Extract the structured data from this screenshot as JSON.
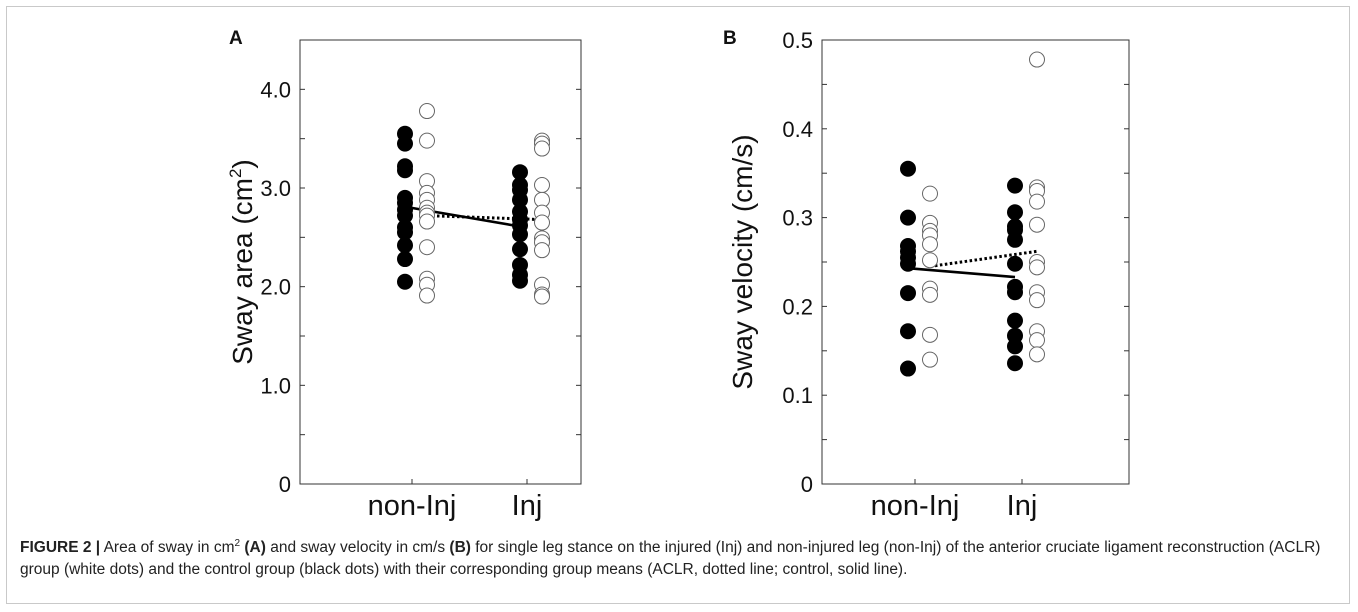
{
  "caption": {
    "label": "FIGURE 2 |",
    "t1": " Area of sway in cm",
    "sup": "2",
    "b1": " (A)",
    "t2": " and sway velocity in cm/s ",
    "b2": "(B)",
    "t3": " for single leg stance on the injured (Inj) and non-injured leg (non-Inj) of the anterior cruciate ligament reconstruction (ACLR) group (white dots) and the control group (black dots) with their corresponding group means (ACLR, dotted line; control, solid line)."
  },
  "chart_data": [
    {
      "type": "scatter",
      "panel": "A",
      "ylabel": "Sway area (cm²)",
      "ylabel_main": "Sway area (cm",
      "ylabel_sup": "2",
      "ylabel_end": ")",
      "categories": [
        "non-Inj",
        "Inj"
      ],
      "ylim": [
        0,
        4.5
      ],
      "yticks": [
        0,
        1.0,
        2.0,
        3.0,
        4.0
      ],
      "ytick_labels": [
        "0",
        "1.0",
        "2.0",
        "3.0",
        "4.0"
      ],
      "series": [
        {
          "group": "control",
          "marker": "black dots",
          "values": {
            "non-Inj": [
              3.55,
              3.45,
              3.22,
              3.18,
              2.9,
              2.85,
              2.78,
              2.72,
              2.6,
              2.55,
              2.42,
              2.28,
              2.05
            ],
            "Inj": [
              3.16,
              3.03,
              2.98,
              2.88,
              2.76,
              2.68,
              2.62,
              2.53,
              2.38,
              2.22,
              2.12,
              2.06
            ]
          },
          "mean": {
            "non-Inj": 2.81,
            "Inj": 2.61
          }
        },
        {
          "group": "ACLR",
          "marker": "white dots",
          "values": {
            "non-Inj": [
              3.78,
              3.48,
              3.07,
              2.95,
              2.88,
              2.8,
              2.75,
              2.72,
              2.66,
              2.4,
              2.08,
              2.02,
              1.91
            ],
            "Inj": [
              3.48,
              3.45,
              3.4,
              3.03,
              2.88,
              2.75,
              2.65,
              2.49,
              2.45,
              2.37,
              2.02,
              1.92,
              1.9
            ]
          },
          "mean": {
            "non-Inj": 2.72,
            "Inj": 2.68
          }
        }
      ]
    },
    {
      "type": "scatter",
      "panel": "B",
      "ylabel": "Sway velocity (cm/s)",
      "categories": [
        "non-Inj",
        "Inj"
      ],
      "ylim": [
        0,
        0.5
      ],
      "yticks": [
        0,
        0.1,
        0.2,
        0.3,
        0.4,
        0.5
      ],
      "ytick_labels": [
        "0",
        "0.1",
        "0.2",
        "0.3",
        "0.4",
        "0.5"
      ],
      "series": [
        {
          "group": "control",
          "marker": "black dots",
          "values": {
            "non-Inj": [
              0.355,
              0.3,
              0.268,
              0.262,
              0.255,
              0.248,
              0.215,
              0.172,
              0.13
            ],
            "Inj": [
              0.336,
              0.306,
              0.29,
              0.286,
              0.275,
              0.248,
              0.222,
              0.216,
              0.184,
              0.167,
              0.155,
              0.136
            ]
          },
          "mean": {
            "non-Inj": 0.243,
            "Inj": 0.233
          }
        },
        {
          "group": "ACLR",
          "marker": "white dots",
          "values": {
            "non-Inj": [
              0.327,
              0.294,
              0.285,
              0.28,
              0.27,
              0.252,
              0.22,
              0.213,
              0.168,
              0.14
            ],
            "Inj": [
              0.478,
              0.334,
              0.33,
              0.318,
              0.292,
              0.25,
              0.244,
              0.216,
              0.207,
              0.172,
              0.162,
              0.146
            ]
          },
          "mean": {
            "non-Inj": 0.245,
            "Inj": 0.262
          }
        }
      ]
    }
  ]
}
